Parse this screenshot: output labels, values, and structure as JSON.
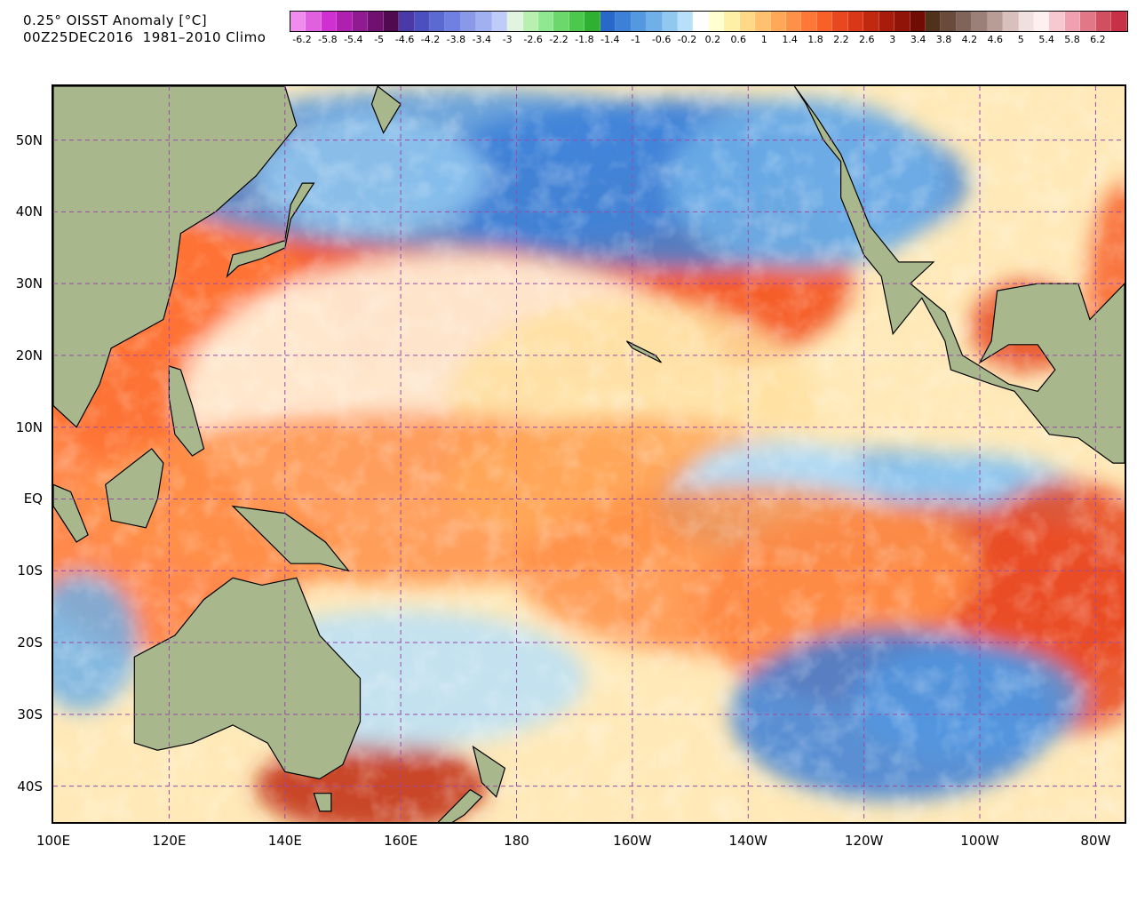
{
  "header": {
    "title_line1": "0.25° OISST Anomaly [°C]",
    "title_line2": "00Z25DEC2016  1981–2010 Climo"
  },
  "colorbar": {
    "colors": [
      "#f08cf0",
      "#e060e0",
      "#d030d0",
      "#b020b0",
      "#901a90",
      "#701070",
      "#500a50",
      "#4a3aa8",
      "#4a50c0",
      "#5a6ad0",
      "#7080e0",
      "#8a98e8",
      "#a0b0f0",
      "#c0ccf8",
      "#e0f4e0",
      "#b8f0b0",
      "#90e890",
      "#6cd86c",
      "#4cc84c",
      "#30b030",
      "#2868c8",
      "#3c80d8",
      "#5498e0",
      "#70b0e8",
      "#90c8f0",
      "#b8e0f8",
      "#ffffff",
      "#ffffd0",
      "#fff0a8",
      "#ffd888",
      "#ffc070",
      "#ffa858",
      "#ff9048",
      "#ff7838",
      "#f86028",
      "#e84820",
      "#d83818",
      "#c02810",
      "#a81c0c",
      "#901408",
      "#700c04",
      "#50321c",
      "#6a4a3a",
      "#80645a",
      "#9a8078",
      "#b89c96",
      "#d8c0bc",
      "#f0e0e0",
      "#fff0f0",
      "#f8c8d0",
      "#f0a0b0",
      "#e07888",
      "#d05060",
      "#c83048"
    ],
    "labels": [
      "-6.2",
      "-5.8",
      "-5.4",
      "-5",
      "-4.6",
      "-4.2",
      "-3.8",
      "-3.4",
      "-3",
      "-2.6",
      "-2.2",
      "-1.8",
      "-1.4",
      "-1",
      "-0.6",
      "-0.2",
      "0.2",
      "0.6",
      "1",
      "1.4",
      "1.8",
      "2.2",
      "2.6",
      "3",
      "3.4",
      "3.8",
      "4.2",
      "4.6",
      "5",
      "5.4",
      "5.8",
      "6.2"
    ]
  },
  "map": {
    "lat_labels": [
      "50N",
      "40N",
      "30N",
      "20N",
      "10N",
      "EQ",
      "10S",
      "20S",
      "30S",
      "40S"
    ],
    "lon_labels": [
      "100E",
      "120E",
      "140E",
      "160E",
      "180",
      "160W",
      "140W",
      "120W",
      "100W",
      "80W"
    ],
    "land_color": "#a8b88c",
    "gridline_color": "#9a4aa8",
    "neutral_color": "#fffbe8"
  }
}
